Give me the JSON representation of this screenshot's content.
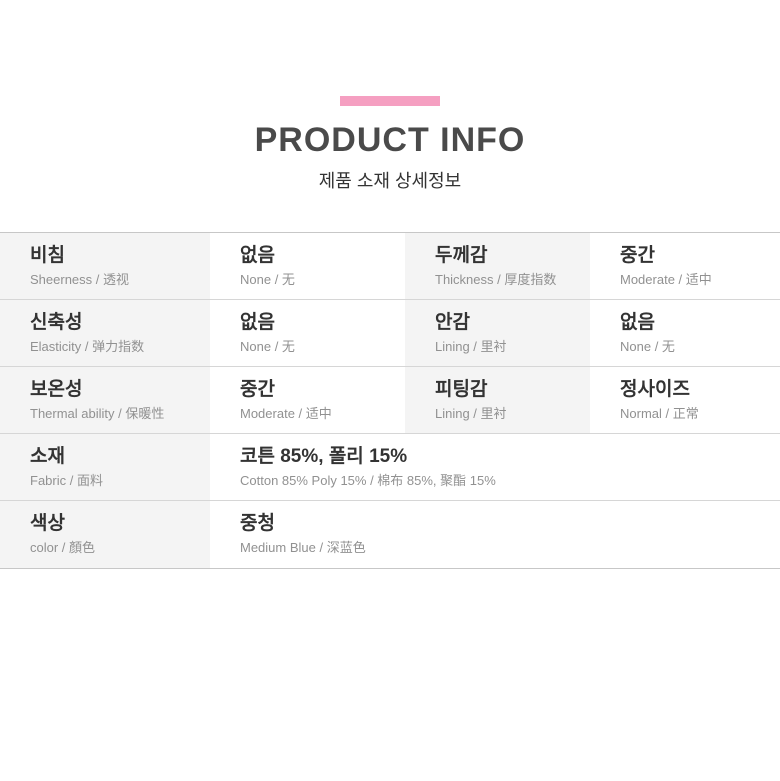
{
  "header": {
    "title": "PRODUCT INFO",
    "subtitle": "제품 소재 상세정보"
  },
  "colors": {
    "accent-pink": "#f59fc1",
    "title-gray": "#4a4a4a",
    "label-bg": "#f4f4f4",
    "outer-border": "#c7c7c7",
    "row-border": "#d6d6d6",
    "main-text": "#333333",
    "sub-text": "#919191"
  },
  "table": {
    "rows": [
      {
        "cells": [
          {
            "main": "비침",
            "sub": "Sheerness / 透视"
          },
          {
            "main": "없음",
            "sub": "None / 无"
          },
          {
            "main": "두께감",
            "sub": "Thickness / 厚度指数"
          },
          {
            "main": "중간",
            "sub": "Moderate / 适中"
          }
        ]
      },
      {
        "cells": [
          {
            "main": "신축성",
            "sub": "Elasticity / 弹力指数"
          },
          {
            "main": "없음",
            "sub": "None / 无"
          },
          {
            "main": "안감",
            "sub": "Lining / 里衬"
          },
          {
            "main": "없음",
            "sub": "None / 无"
          }
        ]
      },
      {
        "cells": [
          {
            "main": "보온성",
            "sub": "Thermal ability / 保暖性"
          },
          {
            "main": "중간",
            "sub": "Moderate / 适中"
          },
          {
            "main": "피팅감",
            "sub": "Lining / 里衬"
          },
          {
            "main": "정사이즈",
            "sub": "Normal / 正常"
          }
        ]
      },
      {
        "cells": [
          {
            "main": "소재",
            "sub": "Fabric / 面料"
          },
          {
            "main": "코튼 85%, 폴리 15%",
            "sub": "Cotton 85% Poly 15% / 棉布 85%, 聚酯 15%"
          }
        ]
      },
      {
        "cells": [
          {
            "main": "색상",
            "sub": "color / 顏色"
          },
          {
            "main": "중청",
            "sub": "Medium Blue / 深蓝色"
          }
        ]
      }
    ]
  }
}
